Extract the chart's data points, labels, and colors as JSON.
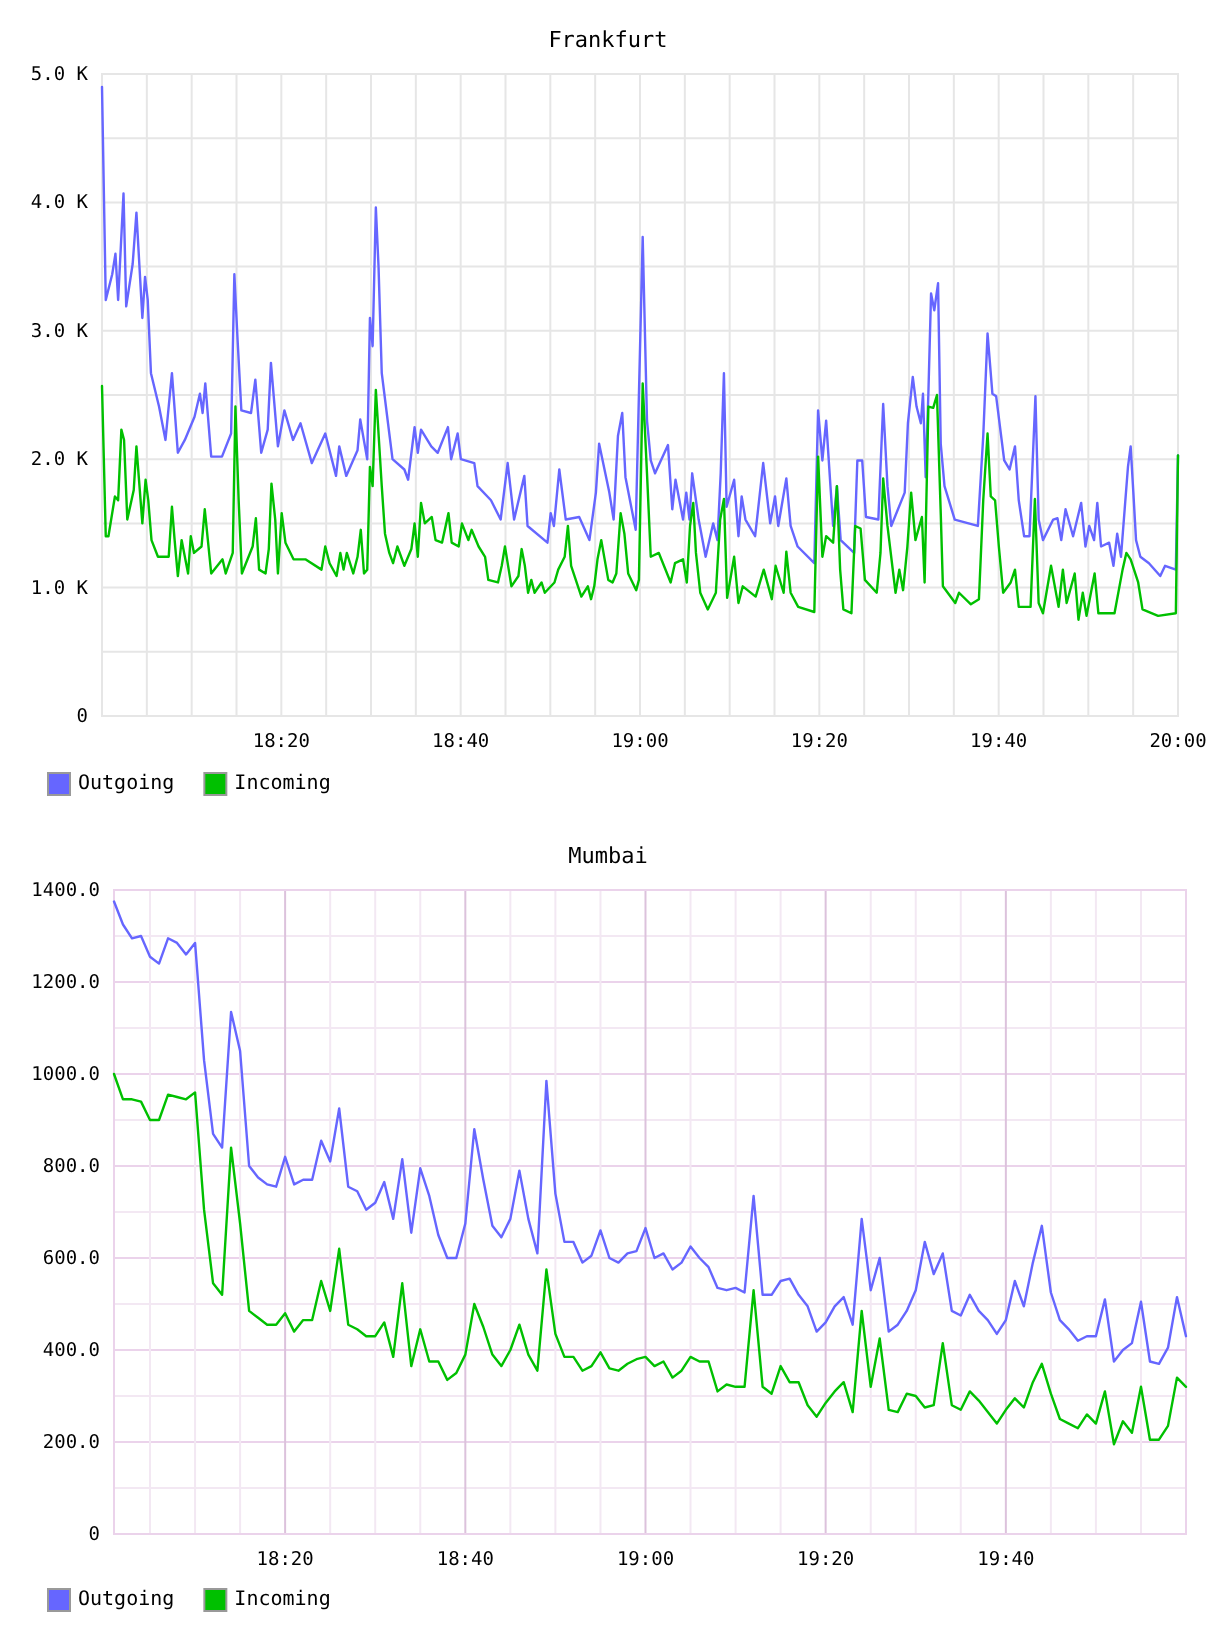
{
  "chart_data": [
    {
      "type": "line",
      "title": "Frankfurt",
      "xlim": [
        18.0,
        20.0
      ],
      "xticks": [
        {
          "value": 18.0833,
          "label": null
        },
        {
          "value": 18.1667,
          "label": null
        },
        {
          "value": 18.25,
          "label": null
        },
        {
          "value": 18.3333,
          "label": "18:20"
        },
        {
          "value": 18.4167,
          "label": null
        },
        {
          "value": 18.5,
          "label": null
        },
        {
          "value": 18.5833,
          "label": null
        },
        {
          "value": 18.6667,
          "label": "18:40"
        },
        {
          "value": 18.75,
          "label": null
        },
        {
          "value": 18.8333,
          "label": null
        },
        {
          "value": 18.9167,
          "label": null
        },
        {
          "value": 19.0,
          "label": "19:00"
        },
        {
          "value": 19.0833,
          "label": null
        },
        {
          "value": 19.1667,
          "label": null
        },
        {
          "value": 19.25,
          "label": null
        },
        {
          "value": 19.3333,
          "label": "19:20"
        },
        {
          "value": 19.4167,
          "label": null
        },
        {
          "value": 19.5,
          "label": null
        },
        {
          "value": 19.5833,
          "label": null
        },
        {
          "value": 19.6667,
          "label": "19:40"
        },
        {
          "value": 19.75,
          "label": null
        },
        {
          "value": 19.8333,
          "label": null
        },
        {
          "value": 19.9167,
          "label": null
        },
        {
          "value": 20.0,
          "label": "20:00"
        }
      ],
      "ylim": [
        0,
        5000
      ],
      "yticks": [
        0,
        {
          "value": 500,
          "label": null
        },
        {
          "value": 1000,
          "label": "1.0 K"
        },
        {
          "value": 1500,
          "label": null
        },
        {
          "value": 2000,
          "label": "2.0 K"
        },
        {
          "value": 2500,
          "label": null
        },
        {
          "value": 3000,
          "label": "3.0 K"
        },
        {
          "value": 3500,
          "label": null
        },
        {
          "value": 4000,
          "label": "4.0 K"
        },
        {
          "value": 4500,
          "label": null
        },
        {
          "value": 5000,
          "label": "5.0 K"
        }
      ],
      "grid": true,
      "legend": "bottom left",
      "series": [
        {
          "name": "Outgoing",
          "color": "#6666ff",
          "x": [
            18.0,
            18.007,
            18.019,
            18.025,
            18.03,
            18.04,
            18.045,
            18.057,
            18.064,
            18.075,
            18.08,
            18.085,
            18.091,
            18.106,
            18.118,
            18.13,
            18.141,
            18.154,
            18.172,
            18.182,
            18.187,
            18.192,
            18.203,
            18.223,
            18.24,
            18.246,
            18.252,
            18.259,
            18.277,
            18.285,
            18.296,
            18.308,
            18.314,
            18.327,
            18.339,
            18.355,
            18.369,
            18.39,
            18.415,
            18.435,
            18.441,
            18.454,
            18.475,
            18.48,
            18.493,
            18.498,
            18.503,
            18.509,
            18.514,
            18.52,
            18.534,
            18.54,
            18.562,
            18.569,
            18.581,
            18.587,
            18.593,
            18.612,
            18.624,
            18.643,
            18.649,
            18.661,
            18.667,
            18.692,
            18.698,
            18.723,
            18.741,
            18.754,
            18.766,
            18.785,
            18.791,
            18.828,
            18.834,
            18.84,
            18.85,
            18.862,
            18.887,
            18.906,
            18.918,
            18.924,
            18.943,
            18.951,
            18.959,
            18.967,
            18.973,
            18.992,
            19.005,
            19.013,
            19.02,
            19.028,
            19.052,
            19.06,
            19.066,
            19.08,
            19.086,
            19.092,
            19.097,
            19.109,
            19.122,
            19.136,
            19.144,
            19.15,
            19.156,
            19.161,
            19.175,
            19.183,
            19.189,
            19.196,
            19.214,
            19.229,
            19.242,
            19.251,
            19.257,
            19.272,
            19.28,
            19.293,
            19.324,
            19.331,
            19.339,
            19.346,
            19.354,
            19.359,
            19.366,
            19.373,
            19.398,
            19.404,
            19.413,
            19.42,
            19.443,
            19.452,
            19.46,
            19.467,
            19.492,
            19.498,
            19.507,
            19.514,
            19.522,
            19.526,
            19.531,
            19.536,
            19.541,
            19.547,
            19.554,
            19.559,
            19.566,
            19.585,
            19.628,
            19.638,
            19.646,
            19.655,
            19.662,
            19.677,
            19.687,
            19.697,
            19.704,
            19.714,
            19.724,
            19.735,
            19.741,
            19.749,
            19.768,
            19.776,
            19.783,
            19.791,
            19.805,
            19.82,
            19.828,
            19.835,
            19.844,
            19.85,
            19.857,
            19.872,
            19.88,
            19.887,
            19.894,
            19.907,
            19.912,
            19.917,
            19.922,
            19.93,
            19.946,
            19.967,
            19.976,
            19.996,
            20.0
          ],
          "values": [
            4900,
            3240,
            3440,
            3600,
            3240,
            4070,
            3190,
            3520,
            3920,
            3100,
            3420,
            3240,
            2670,
            2410,
            2150,
            2670,
            2050,
            2150,
            2330,
            2510,
            2360,
            2590,
            2020,
            2020,
            2200,
            3440,
            2930,
            2380,
            2360,
            2620,
            2050,
            2230,
            2750,
            2100,
            2380,
            2150,
            2280,
            1970,
            2200,
            1870,
            2100,
            1870,
            2070,
            2310,
            2000,
            3100,
            2880,
            3960,
            3500,
            2670,
            2200,
            2000,
            1920,
            1840,
            2250,
            2050,
            2230,
            2100,
            2050,
            2250,
            2000,
            2200,
            2000,
            1970,
            1790,
            1680,
            1530,
            1970,
            1530,
            1870,
            1480,
            1350,
            1580,
            1480,
            1920,
            1530,
            1550,
            1370,
            1740,
            2120,
            1740,
            1530,
            2180,
            2360,
            1860,
            1450,
            3730,
            2300,
            1990,
            1890,
            2110,
            1610,
            1840,
            1530,
            1740,
            1530,
            1890,
            1530,
            1240,
            1500,
            1370,
            1890,
            2670,
            1630,
            1840,
            1400,
            1710,
            1530,
            1400,
            1970,
            1500,
            1710,
            1480,
            1850,
            1480,
            1320,
            1190,
            2380,
            1990,
            2300,
            1790,
            1480,
            1790,
            1370,
            1270,
            1990,
            1990,
            1550,
            1530,
            2430,
            1790,
            1480,
            1740,
            2280,
            2640,
            2410,
            2280,
            2510,
            1860,
            2510,
            3290,
            3160,
            3370,
            2120,
            1790,
            1530,
            1480,
            2180,
            2980,
            2510,
            2490,
            1990,
            1920,
            2100,
            1680,
            1400,
            1400,
            2490,
            1530,
            1370,
            1530,
            1540,
            1370,
            1610,
            1400,
            1660,
            1320,
            1480,
            1370,
            1660,
            1320,
            1350,
            1170,
            1420,
            1240,
            1940,
            2100,
            1740,
            1370,
            1240,
            1190,
            1090,
            1170,
            1140,
            2030
          ]
        },
        {
          "name": "Incoming",
          "color": "#00c000",
          "x": [
            18.0,
            18.007,
            18.012,
            18.024,
            18.03,
            18.036,
            18.041,
            18.047,
            18.059,
            18.064,
            18.075,
            18.081,
            18.086,
            18.092,
            18.104,
            18.124,
            18.13,
            18.135,
            18.141,
            18.148,
            18.16,
            18.165,
            18.171,
            18.185,
            18.191,
            18.203,
            18.224,
            18.23,
            18.243,
            18.248,
            18.254,
            18.26,
            18.28,
            18.286,
            18.292,
            18.304,
            18.31,
            18.315,
            18.322,
            18.327,
            18.334,
            18.341,
            18.356,
            18.378,
            18.408,
            18.415,
            18.423,
            18.436,
            18.443,
            18.449,
            18.455,
            18.467,
            18.475,
            18.481,
            18.487,
            18.493,
            18.498,
            18.503,
            18.509,
            18.514,
            18.52,
            18.526,
            18.534,
            18.541,
            18.549,
            18.562,
            18.575,
            18.581,
            18.587,
            18.593,
            18.6,
            18.613,
            18.62,
            18.632,
            18.644,
            18.65,
            18.663,
            18.669,
            18.681,
            18.687,
            18.7,
            18.712,
            18.718,
            18.736,
            18.743,
            18.749,
            18.761,
            18.774,
            18.78,
            18.786,
            18.792,
            18.798,
            18.804,
            18.817,
            18.823,
            18.841,
            18.848,
            18.86,
            18.866,
            18.872,
            18.891,
            18.903,
            18.909,
            18.915,
            18.921,
            18.928,
            18.941,
            18.949,
            18.956,
            18.964,
            18.971,
            18.978,
            18.993,
            18.998,
            19.005,
            19.013,
            19.02,
            19.035,
            19.057,
            19.065,
            19.08,
            19.087,
            19.093,
            19.099,
            19.104,
            19.112,
            19.126,
            19.141,
            19.149,
            19.156,
            19.162,
            19.175,
            19.183,
            19.191,
            19.215,
            19.23,
            19.245,
            19.252,
            19.267,
            19.272,
            19.28,
            19.294,
            19.324,
            19.331,
            19.339,
            19.346,
            19.359,
            19.366,
            19.372,
            19.378,
            19.393,
            19.4,
            19.41,
            19.418,
            19.44,
            19.447,
            19.452,
            19.46,
            19.475,
            19.482,
            19.489,
            19.497,
            19.504,
            19.512,
            19.524,
            19.529,
            19.536,
            19.545,
            19.552,
            19.559,
            19.563,
            19.586,
            19.593,
            19.615,
            19.63,
            19.638,
            19.646,
            19.652,
            19.66,
            19.667,
            19.675,
            19.689,
            19.697,
            19.704,
            19.726,
            19.734,
            19.741,
            19.749,
            19.764,
            19.778,
            19.786,
            19.793,
            19.808,
            19.815,
            19.823,
            19.83,
            19.845,
            19.852,
            19.882,
            19.897,
            19.904,
            19.912,
            19.926,
            19.934,
            19.963,
            19.996,
            20.0
          ],
          "values": [
            2570,
            1400,
            1400,
            1710,
            1680,
            2230,
            2150,
            1530,
            1760,
            2100,
            1500,
            1840,
            1680,
            1370,
            1240,
            1240,
            1630,
            1370,
            1090,
            1370,
            1110,
            1400,
            1270,
            1320,
            1610,
            1110,
            1220,
            1110,
            1270,
            2410,
            1680,
            1110,
            1320,
            1540,
            1140,
            1110,
            1300,
            1810,
            1530,
            1110,
            1580,
            1350,
            1220,
            1220,
            1140,
            1320,
            1190,
            1090,
            1270,
            1140,
            1270,
            1110,
            1240,
            1450,
            1110,
            1140,
            1940,
            1790,
            2540,
            2200,
            1790,
            1420,
            1270,
            1190,
            1320,
            1170,
            1300,
            1500,
            1240,
            1660,
            1500,
            1550,
            1370,
            1350,
            1580,
            1350,
            1320,
            1500,
            1370,
            1450,
            1320,
            1240,
            1060,
            1040,
            1170,
            1320,
            1010,
            1090,
            1300,
            1170,
            960,
            1060,
            960,
            1040,
            960,
            1040,
            1140,
            1240,
            1480,
            1170,
            930,
            1010,
            910,
            1010,
            1220,
            1370,
            1060,
            1040,
            1110,
            1580,
            1420,
            1110,
            980,
            1060,
            2590,
            1890,
            1240,
            1270,
            1040,
            1190,
            1220,
            1040,
            1480,
            1660,
            1270,
            960,
            830,
            960,
            1530,
            1690,
            920,
            1240,
            880,
            1010,
            930,
            1140,
            910,
            1170,
            960,
            1280,
            960,
            850,
            810,
            2020,
            1240,
            1400,
            1350,
            1790,
            1140,
            830,
            800,
            1480,
            1460,
            1060,
            960,
            1270,
            1850,
            1480,
            960,
            1140,
            980,
            1320,
            1740,
            1370,
            1550,
            1040,
            2410,
            2400,
            2500,
            1580,
            1010,
            880,
            960,
            870,
            910,
            1680,
            2200,
            1710,
            1680,
            1320,
            960,
            1040,
            1140,
            850,
            850,
            1690,
            880,
            800,
            1170,
            850,
            1140,
            880,
            1110,
            750,
            960,
            780,
            1110,
            800,
            800,
            1140,
            1270,
            1220,
            1040,
            830,
            780,
            800,
            2030
          ]
        }
      ]
    },
    {
      "type": "line",
      "title": "Mumbai",
      "xlim": [
        18.0167,
        20.0
      ],
      "xticks": [
        {
          "value": 18.0833,
          "label": null
        },
        {
          "value": 18.1667,
          "label": null
        },
        {
          "value": 18.25,
          "label": null
        },
        {
          "value": 18.3333,
          "label": "18:20"
        },
        {
          "value": 18.4167,
          "label": null
        },
        {
          "value": 18.5,
          "label": null
        },
        {
          "value": 18.5833,
          "label": null
        },
        {
          "value": 18.6667,
          "label": "18:40"
        },
        {
          "value": 18.75,
          "label": null
        },
        {
          "value": 18.8333,
          "label": null
        },
        {
          "value": 18.9167,
          "label": null
        },
        {
          "value": 19.0,
          "label": "19:00"
        },
        {
          "value": 19.0833,
          "label": null
        },
        {
          "value": 19.1667,
          "label": null
        },
        {
          "value": 19.25,
          "label": null
        },
        {
          "value": 19.3333,
          "label": "19:20"
        },
        {
          "value": 19.4167,
          "label": null
        },
        {
          "value": 19.5,
          "label": null
        },
        {
          "value": 19.5833,
          "label": null
        },
        {
          "value": 19.6667,
          "label": "19:40"
        },
        {
          "value": 19.75,
          "label": null
        },
        {
          "value": 19.8333,
          "label": null
        },
        {
          "value": 19.9167,
          "label": null
        }
      ],
      "ylim": [
        0,
        1400
      ],
      "yticks": [
        0,
        {
          "value": 100,
          "label": null
        },
        {
          "value": 200,
          "label": "200.0"
        },
        {
          "value": 300,
          "label": null
        },
        {
          "value": 400,
          "label": "400.0"
        },
        {
          "value": 500,
          "label": null
        },
        {
          "value": 600,
          "label": "600.0"
        },
        {
          "value": 700,
          "label": null
        },
        {
          "value": 800,
          "label": "800.0"
        },
        {
          "value": 900,
          "label": null
        },
        {
          "value": 1000,
          "label": "1000.0"
        },
        {
          "value": 1100,
          "label": null
        },
        {
          "value": 1200,
          "label": "1200.0"
        },
        {
          "value": 1300,
          "label": null
        },
        {
          "value": 1400,
          "label": "1400.0"
        }
      ],
      "grid": true,
      "legend": "bottom left",
      "x": [
        18.0167,
        18.0333,
        18.05,
        18.0667,
        18.0833,
        18.1,
        18.1167,
        18.1333,
        18.15,
        18.1667,
        18.1833,
        18.2,
        18.2167,
        18.2333,
        18.25,
        18.2667,
        18.2833,
        18.3,
        18.3167,
        18.3333,
        18.35,
        18.3667,
        18.3833,
        18.4,
        18.4167,
        18.4333,
        18.45,
        18.4667,
        18.4833,
        18.5,
        18.5167,
        18.5333,
        18.55,
        18.5667,
        18.5833,
        18.6,
        18.6167,
        18.6333,
        18.65,
        18.6667,
        18.6833,
        18.7,
        18.7167,
        18.7333,
        18.75,
        18.7667,
        18.7833,
        18.8,
        18.8167,
        18.8333,
        18.85,
        18.8667,
        18.8833,
        18.9,
        18.9167,
        18.9333,
        18.95,
        18.9667,
        18.9833,
        19.0,
        19.0167,
        19.0333,
        19.05,
        19.0667,
        19.0833,
        19.1,
        19.1167,
        19.1333,
        19.15,
        19.1667,
        19.1833,
        19.2,
        19.2167,
        19.2333,
        19.25,
        19.2667,
        19.2833,
        19.3,
        19.3167,
        19.3333,
        19.35,
        19.3667,
        19.3833,
        19.4,
        19.4167,
        19.4333,
        19.45,
        19.4667,
        19.4833,
        19.5,
        19.5167,
        19.5333,
        19.55,
        19.5667,
        19.5833,
        19.6,
        19.6167,
        19.6333,
        19.65,
        19.6667,
        19.6833,
        19.7,
        19.7167,
        19.7333,
        19.75,
        19.7667,
        19.7833,
        19.8,
        19.8167,
        19.8333,
        19.85,
        19.8667,
        19.8833,
        19.9,
        19.9167,
        19.9333,
        19.95,
        19.9667,
        19.9833,
        20.0
      ],
      "series": [
        {
          "name": "Outgoing",
          "color": "#6666ff",
          "values": [
            1375,
            1325,
            1295,
            1300,
            1255,
            1240,
            1295,
            1285,
            1260,
            1285,
            1030,
            870,
            840,
            1135,
            1050,
            800,
            775,
            760,
            755,
            820,
            760,
            770,
            770,
            855,
            810,
            925,
            755,
            745,
            705,
            720,
            765,
            685,
            815,
            655,
            795,
            735,
            650,
            600,
            600,
            675,
            880,
            770,
            670,
            645,
            685,
            790,
            685,
            610,
            985,
            740,
            635,
            635,
            590,
            605,
            660,
            600,
            590,
            610,
            615,
            665,
            600,
            610,
            575,
            590,
            625,
            600,
            580,
            535,
            530,
            535,
            525,
            735,
            520,
            520,
            550,
            555,
            520,
            495,
            440,
            460,
            495,
            515,
            455,
            685,
            530,
            600,
            440,
            455,
            485,
            530,
            635,
            565,
            610,
            485,
            475,
            520,
            485,
            465,
            435,
            465,
            550,
            495,
            590,
            670,
            525,
            465,
            445,
            420,
            430,
            430,
            510,
            375,
            400,
            415,
            505,
            375,
            370,
            405,
            515,
            430
          ]
        },
        {
          "name": "Incoming",
          "color": "#00c000",
          "values": [
            1000,
            945,
            945,
            940,
            900,
            900,
            955,
            950,
            945,
            960,
            705,
            545,
            520,
            840,
            675,
            485,
            470,
            455,
            455,
            480,
            440,
            465,
            465,
            550,
            485,
            620,
            455,
            445,
            430,
            430,
            460,
            385,
            545,
            365,
            445,
            375,
            375,
            335,
            350,
            390,
            500,
            450,
            390,
            365,
            400,
            455,
            390,
            355,
            575,
            435,
            385,
            385,
            355,
            365,
            395,
            360,
            355,
            370,
            380,
            385,
            365,
            375,
            340,
            355,
            385,
            375,
            375,
            310,
            325,
            320,
            320,
            530,
            320,
            305,
            365,
            330,
            330,
            280,
            255,
            285,
            310,
            330,
            265,
            485,
            320,
            425,
            270,
            265,
            305,
            300,
            275,
            280,
            415,
            280,
            270,
            310,
            290,
            265,
            240,
            270,
            295,
            275,
            330,
            370,
            305,
            250,
            240,
            230,
            260,
            240,
            310,
            195,
            245,
            220,
            320,
            205,
            205,
            235,
            340,
            320
          ]
        }
      ]
    }
  ]
}
